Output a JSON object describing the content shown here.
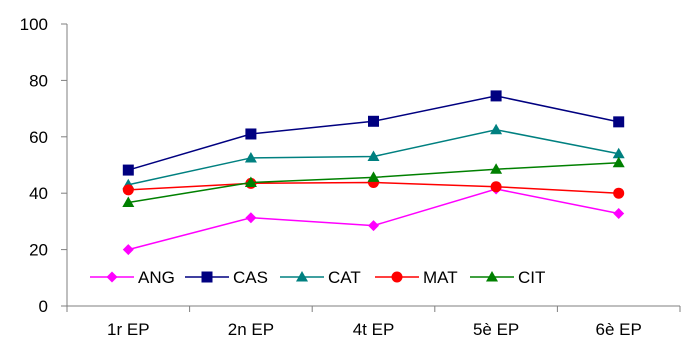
{
  "chart_data": {
    "type": "line",
    "title": "",
    "xlabel": "",
    "ylabel": "",
    "categories": [
      "1r EP",
      "2n EP",
      "4t EP",
      "5è EP",
      "6è EP"
    ],
    "ylim": [
      0,
      100
    ],
    "yticks": [
      0,
      20,
      40,
      60,
      80,
      100
    ],
    "grid": false,
    "legend_position": "bottom",
    "series": [
      {
        "name": "ANG",
        "values": [
          20,
          31.3,
          28.5,
          41.5,
          32.8
        ],
        "color": "#ff00ff",
        "marker": "diamond"
      },
      {
        "name": "CAS",
        "values": [
          48.2,
          61,
          65.5,
          74.5,
          65.3
        ],
        "color": "#000080",
        "marker": "square"
      },
      {
        "name": "CAT",
        "values": [
          43,
          52.5,
          53,
          62.5,
          54
        ],
        "color": "#008080",
        "marker": "triangle"
      },
      {
        "name": "MAT",
        "values": [
          41.2,
          43.5,
          43.8,
          42.3,
          40
        ],
        "color": "#ff0000",
        "marker": "circle"
      },
      {
        "name": "CIT",
        "values": [
          36.7,
          43.8,
          45.6,
          48.5,
          50.8
        ],
        "color": "#008000",
        "marker": "triangle"
      }
    ]
  }
}
